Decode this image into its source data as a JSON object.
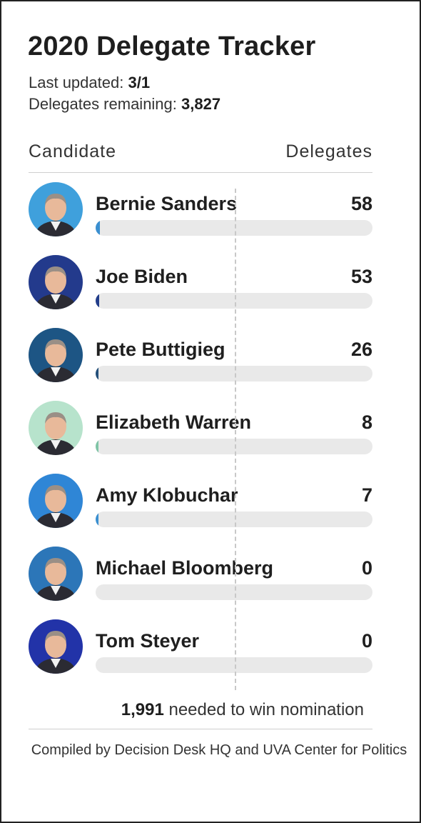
{
  "header": {
    "title": "2020 Delegate Tracker",
    "updated_label": "Last updated:",
    "updated_value": "3/1",
    "remaining_label": "Delegates remaining:",
    "remaining_value": "3,827"
  },
  "columns": {
    "left": "Candidate",
    "right": "Delegates"
  },
  "colors": {
    "bar_track": "#e9e9e9",
    "threshold_line": "#c8c8c8"
  },
  "chart_data": {
    "type": "bar",
    "orientation": "horizontal",
    "categories": [
      "Bernie Sanders",
      "Joe Biden",
      "Pete Buttigieg",
      "Elizabeth Warren",
      "Amy Klobuchar",
      "Michael Bloomberg",
      "Tom Steyer"
    ],
    "values": [
      58,
      53,
      26,
      8,
      7,
      0,
      0
    ],
    "labels": [
      "58",
      "53",
      "26",
      "8",
      "7",
      "0",
      "0"
    ],
    "colors": [
      "#3a8fd0",
      "#223d8a",
      "#234f7a",
      "#7fc4a6",
      "#3a8fd0",
      "#2a6aa8",
      "#1e3d9a"
    ],
    "xlim": [
      0,
      3982
    ],
    "threshold": {
      "value": 1991,
      "style": "dashed"
    },
    "grid": false
  },
  "candidates": [
    {
      "name": "Bernie Sanders",
      "delegates": "58",
      "avatar_icon": "bernie-sanders-portrait-icon",
      "avatar_bg": "#3fa0dc"
    },
    {
      "name": "Joe Biden",
      "delegates": "53",
      "avatar_icon": "joe-biden-portrait-icon",
      "avatar_bg": "#233a8c"
    },
    {
      "name": "Pete Buttigieg",
      "delegates": "26",
      "avatar_icon": "pete-buttigieg-portrait-icon",
      "avatar_bg": "#1d5584"
    },
    {
      "name": "Elizabeth Warren",
      "delegates": "8",
      "avatar_icon": "elizabeth-warren-portrait-icon",
      "avatar_bg": "#b7e3cc"
    },
    {
      "name": "Amy Klobuchar",
      "delegates": "7",
      "avatar_icon": "amy-klobuchar-portrait-icon",
      "avatar_bg": "#2f86d6"
    },
    {
      "name": "Michael Bloomberg",
      "delegates": "0",
      "avatar_icon": "michael-bloomberg-portrait-icon",
      "avatar_bg": "#2c76b8"
    },
    {
      "name": "Tom Steyer",
      "delegates": "0",
      "avatar_icon": "tom-steyer-portrait-icon",
      "avatar_bg": "#2233a8"
    }
  ],
  "footer": {
    "needed_value": "1,991",
    "needed_text": "needed to win nomination",
    "source": "Compiled by Decision Desk HQ and UVA Center for Politics"
  }
}
